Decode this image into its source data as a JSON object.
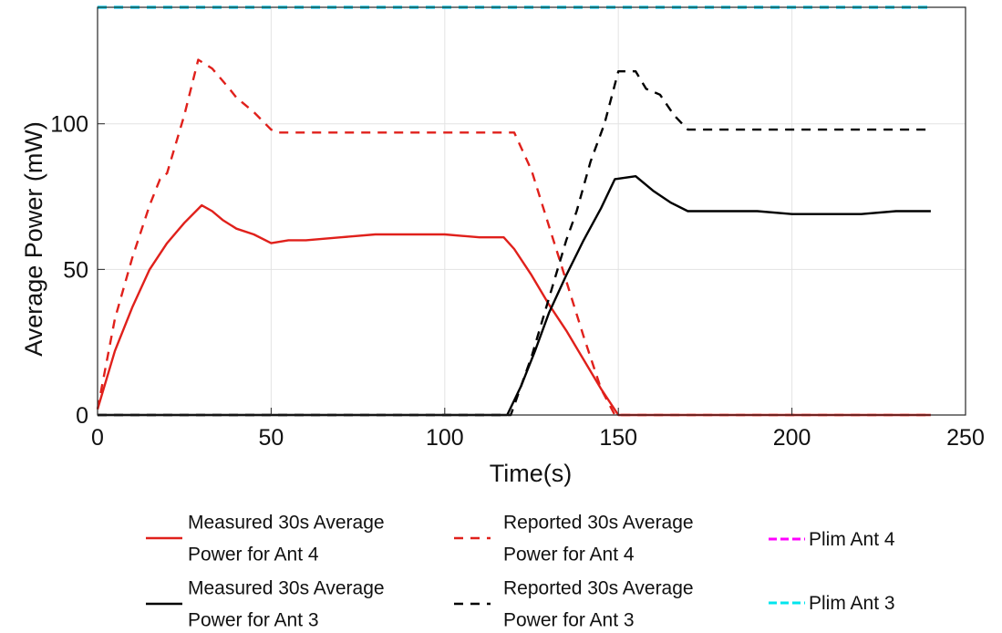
{
  "chart_data": {
    "type": "line",
    "title": "",
    "xlabel": "Time(s)",
    "ylabel": "Average Power (mW)",
    "xlim": [
      0,
      250
    ],
    "ylim": [
      0,
      140
    ],
    "xticks": [
      0,
      50,
      100,
      150,
      200,
      250
    ],
    "yticks": [
      0,
      50,
      100
    ],
    "grid": true,
    "legend_position": "bottom",
    "series": [
      {
        "name": "Measured 30s Average Power for Ant 4",
        "name_lines": [
          "Measured 30s Average",
          "Power for Ant 4"
        ],
        "color": "#e0201b",
        "dash": "solid",
        "x": [
          0,
          5,
          10,
          15,
          20,
          25,
          30,
          33,
          36,
          40,
          45,
          50,
          55,
          60,
          70,
          80,
          90,
          100,
          110,
          117,
          120,
          125,
          130,
          135,
          140,
          145,
          150,
          160,
          180,
          200,
          220,
          240
        ],
        "y": [
          2,
          22,
          37,
          50,
          59,
          66,
          72,
          70,
          67,
          64,
          62,
          59,
          60,
          60,
          61,
          62,
          62,
          62,
          61,
          61,
          57,
          48,
          38,
          29,
          19,
          9,
          0,
          0,
          0,
          0,
          0,
          0
        ]
      },
      {
        "name": "Reported 30s Average Power for Ant 4",
        "name_lines": [
          "Reported 30s Average",
          "Power for Ant 4"
        ],
        "color": "#e0201b",
        "dash": "dashed",
        "x": [
          0,
          5,
          10,
          15,
          18,
          20,
          25,
          29,
          33,
          38,
          40,
          45,
          50,
          52,
          60,
          80,
          100,
          115,
          120,
          125,
          130,
          135,
          140,
          145,
          149,
          160,
          180,
          200,
          220,
          240
        ],
        "y": [
          2,
          33,
          54,
          72,
          81,
          83,
          103,
          122,
          119,
          112,
          109,
          104,
          98,
          97,
          97,
          97,
          97,
          97,
          97,
          84,
          65,
          46,
          27,
          9,
          0,
          0,
          0,
          0,
          0,
          0
        ]
      },
      {
        "name": "Measured 30s Average Power for Ant 3",
        "name_lines": [
          "Measured 30s Average",
          "Power for Ant 3"
        ],
        "color": "#000000",
        "dash": "solid",
        "x": [
          0,
          50,
          100,
          118,
          122,
          126,
          130,
          135,
          140,
          145,
          149,
          155,
          160,
          165,
          170,
          180,
          190,
          200,
          210,
          220,
          230,
          240
        ],
        "y": [
          0,
          0,
          0,
          0,
          10,
          22,
          35,
          48,
          60,
          71,
          81,
          82,
          77,
          73,
          70,
          70,
          70,
          69,
          69,
          69,
          70,
          70
        ],
        "extra": {}
      },
      {
        "name": "Reported 30s Average Power for Ant 3",
        "name_lines": [
          "Reported 30s Average",
          "Power for Ant 3"
        ],
        "color": "#000000",
        "dash": "dashed",
        "x": [
          0,
          50,
          100,
          119,
          125,
          130,
          135,
          138,
          142,
          146,
          150,
          155,
          158,
          162,
          166,
          170,
          180,
          200,
          220,
          240
        ],
        "y": [
          0,
          0,
          0,
          0,
          20,
          40,
          60,
          70,
          87,
          100,
          118,
          118,
          112,
          110,
          103,
          98,
          98,
          98,
          98,
          98
        ]
      },
      {
        "name": "Plim Ant 4",
        "name_lines": [
          "Plim Ant 4"
        ],
        "color": "#ff00ff",
        "dash": "dashed",
        "x": [
          0,
          240
        ],
        "y": [
          140,
          140
        ]
      },
      {
        "name": "Plim Ant 3",
        "name_lines": [
          "Plim Ant 3"
        ],
        "color": "#00e5ee",
        "dash": "dashed",
        "x": [
          0,
          240
        ],
        "y": [
          140,
          140
        ]
      }
    ]
  }
}
